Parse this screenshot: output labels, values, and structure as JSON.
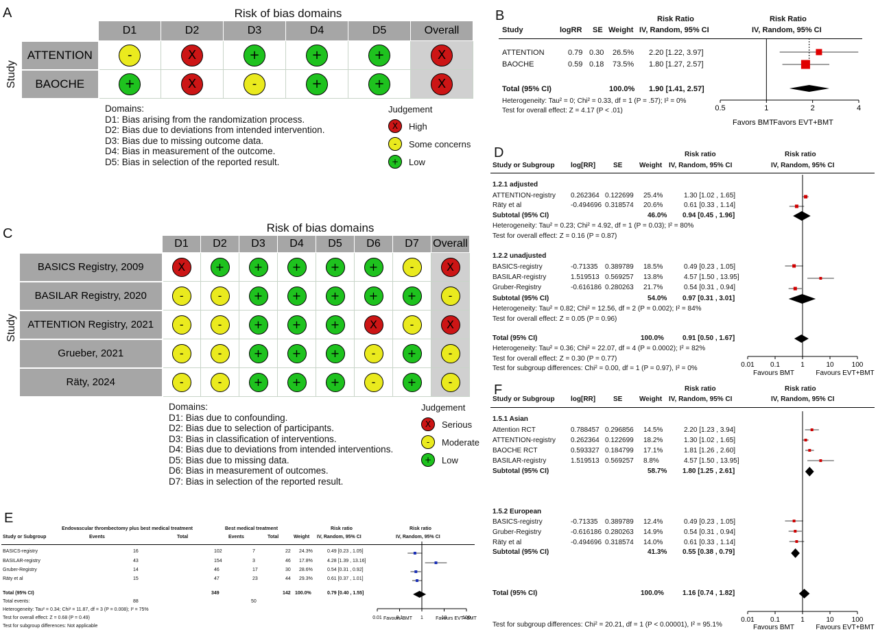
{
  "panels": {
    "a": "A",
    "b": "B",
    "c": "C",
    "d": "D",
    "e": "E",
    "f": "F"
  },
  "panelA": {
    "title": "Risk of bias domains",
    "ylabel": "Study",
    "domains": [
      "D1",
      "D2",
      "D3",
      "D4",
      "D5",
      "Overall"
    ],
    "studies": [
      {
        "name": "ATTENTION",
        "cells": [
          "some",
          "high",
          "low",
          "low",
          "low",
          "high"
        ]
      },
      {
        "name": "BAOCHE",
        "cells": [
          "low",
          "high",
          "some",
          "low",
          "low",
          "high"
        ]
      }
    ],
    "domains_heading": "Domains:",
    "domain_defs": [
      "D1: Bias arising from the randomization process.",
      "D2: Bias due to deviations from intended intervention.",
      "D3: Bias due to missing outcome data.",
      "D4: Bias in measurement of the outcome.",
      "D5: Bias in selection of the reported result."
    ],
    "judgement_heading": "Judgement",
    "legend": [
      {
        "sym": "X",
        "label": "High",
        "cls": "r"
      },
      {
        "sym": "-",
        "label": "Some concerns",
        "cls": "y"
      },
      {
        "sym": "+",
        "label": "Low",
        "cls": "g"
      }
    ]
  },
  "panelC": {
    "title": "Risk of bias domains",
    "ylabel": "Study",
    "domains": [
      "D1",
      "D2",
      "D3",
      "D4",
      "D5",
      "D6",
      "D7",
      "Overall"
    ],
    "studies": [
      {
        "name": "BASICS Registry, 2009",
        "cells": [
          "r",
          "g",
          "g",
          "g",
          "g",
          "g",
          "y",
          "r"
        ]
      },
      {
        "name": "BASILAR Registry, 2020",
        "cells": [
          "y",
          "y",
          "g",
          "g",
          "g",
          "g",
          "g",
          "y"
        ]
      },
      {
        "name": "ATTENTION Registry, 2021",
        "cells": [
          "y",
          "y",
          "g",
          "g",
          "g",
          "r",
          "y",
          "r"
        ]
      },
      {
        "name": "Grueber, 2021",
        "cells": [
          "y",
          "y",
          "g",
          "g",
          "g",
          "y",
          "g",
          "y"
        ]
      },
      {
        "name": "Räty, 2024",
        "cells": [
          "y",
          "y",
          "g",
          "g",
          "g",
          "y",
          "g",
          "y"
        ]
      }
    ],
    "domains_heading": "Domains:",
    "domain_defs": [
      "D1: Bias due to confounding.",
      "D2: Bias due to selection of participants.",
      "D3: Bias in classification of interventions.",
      "D4: Bias due to deviations from intended interventions.",
      "D5: Bias due to missing data.",
      "D6: Bias in measurement of outcomes.",
      "D7: Bias in selection of the reported result."
    ],
    "judgement_heading": "Judgement",
    "legend": [
      {
        "sym": "X",
        "label": "Serious",
        "cls": "r"
      },
      {
        "sym": "-",
        "label": "Moderate",
        "cls": "y"
      },
      {
        "sym": "+",
        "label": "Low",
        "cls": "g"
      }
    ]
  },
  "panelB": {
    "head_rr": "Risk Ratio",
    "head_rr2": "Risk Ratio",
    "col_study": "Study",
    "col_logrr": "logRR",
    "col_se": "SE",
    "col_weight": "Weight",
    "col_ci": "IV, Random, 95% CI",
    "col_ci2": "IV, Random, 95% CI",
    "rows": [
      {
        "study": "ATTENTION",
        "logrr": "0.79",
        "se": "0.30",
        "weight": "26.5%",
        "ci": "2.20 [1.22, 3.97]"
      },
      {
        "study": "BAOCHE",
        "logrr": "0.59",
        "se": "0.18",
        "weight": "73.5%",
        "ci": "1.80 [1.27, 2.57]"
      }
    ],
    "total_label": "Total (95% CI)",
    "total_weight": "100.0%",
    "total_ci": "1.90 [1.41, 2.57]",
    "heterogeneity": "Heterogeneity: Tau² = 0; Chi² = 0.33, df = 1 (P = .57); I² = 0%",
    "overall": "Test for overall effect: Z = 4.17 (P < .01)",
    "ticks": [
      "0.5",
      "1",
      "2",
      "4"
    ],
    "favors_left": "Favors BMT",
    "favors_right": "Favors EVT+BMT"
  },
  "panelD": {
    "head_rr": "Risk ratio",
    "head_rr2": "Risk ratio",
    "col_study": "Study or Subgroup",
    "col_logrr": "log[RR]",
    "col_se": "SE",
    "col_weight": "Weight",
    "col_ci": "IV, Random, 95% CI",
    "col_ci2": "IV, Random, 95% CI",
    "sub1": "1.2.1 adjusted",
    "rows1": [
      {
        "study": "ATTENTION-registry",
        "logrr": "0.262364",
        "se": "0.122699",
        "weight": "25.4%",
        "ci": "1.30 [1.02 , 1.65]"
      },
      {
        "study": "Räty et al",
        "logrr": "-0.494696",
        "se": "0.318574",
        "weight": "20.6%",
        "ci": "0.61 [0.33 , 1.14]"
      }
    ],
    "subtotal1": {
      "label": "Subtotal (95% CI)",
      "weight": "46.0%",
      "ci": "0.94 [0.45 , 1.96]"
    },
    "het1": "Heterogeneity: Tau² = 0.23; Chi² = 4.92, df = 1 (P = 0.03); I² = 80%",
    "ov1": "Test for overall effect: Z = 0.16 (P = 0.87)",
    "sub2": "1.2.2 unadjusted",
    "rows2": [
      {
        "study": "BASICS-registry",
        "logrr": "-0.71335",
        "se": "0.389789",
        "weight": "18.5%",
        "ci": "0.49 [0.23 , 1.05]"
      },
      {
        "study": "BASILAR-registry",
        "logrr": "1.519513",
        "se": "0.569257",
        "weight": "13.8%",
        "ci": "4.57 [1.50 , 13.95]"
      },
      {
        "study": "Gruber-Registry",
        "logrr": "-0.616186",
        "se": "0.280263",
        "weight": "21.7%",
        "ci": "0.54 [0.31 , 0.94]"
      }
    ],
    "subtotal2": {
      "label": "Subtotal (95% CI)",
      "weight": "54.0%",
      "ci": "0.97 [0.31 , 3.01]"
    },
    "het2": "Heterogeneity: Tau² = 0.82; Chi² = 12.56, df = 2 (P = 0.002); I² = 84%",
    "ov2": "Test for overall effect: Z = 0.05 (P = 0.96)",
    "total": {
      "label": "Total (95% CI)",
      "weight": "100.0%",
      "ci": "0.91 [0.50 , 1.67]"
    },
    "het_total": "Heterogeneity: Tau² = 0.36; Chi² = 22.07, df = 4 (P = 0.0002); I² = 82%",
    "ov_total": "Test for overall effect: Z = 0.30 (P = 0.77)",
    "subgroup": "Test for subgroup differences: Chi² = 0.00, df = 1 (P = 0.97), I² = 0%",
    "ticks": [
      "0.01",
      "0.1",
      "1",
      "10",
      "100"
    ],
    "favors_left": "Favours BMT",
    "favors_right": "Favours EVT+BMT"
  },
  "panelE": {
    "head_group1": "Endovascular thrombectomy plus best medical treatment",
    "head_group2": "Best medical treatment",
    "head_rr": "Risk ratio",
    "head_rr2": "Risk ratio",
    "col_study": "Study or Subgroup",
    "col_events": "Events",
    "col_total": "Total",
    "col_events2": "Events",
    "col_total2": "Total",
    "col_weight": "Weight",
    "col_ci": "IV, Random, 95% CI",
    "col_ci2": "IV, Random, 95% CI",
    "rows": [
      {
        "study": "BASICS-registry",
        "e1": "16",
        "t1": "102",
        "e2": "7",
        "t2": "22",
        "w": "24.3%",
        "ci": "0.49 [0.23 , 1.05]"
      },
      {
        "study": "BASILAR-registry",
        "e1": "43",
        "t1": "154",
        "e2": "3",
        "t2": "46",
        "w": "17.8%",
        "ci": "4.28 [1.39 , 13.16]"
      },
      {
        "study": "Gruber-Registry",
        "e1": "14",
        "t1": "46",
        "e2": "17",
        "t2": "30",
        "w": "28.6%",
        "ci": "0.54 [0.31 , 0.92]"
      },
      {
        "study": "Räty et al",
        "e1": "15",
        "t1": "47",
        "e2": "23",
        "t2": "44",
        "w": "29.3%",
        "ci": "0.61 [0.37 , 1.01]"
      }
    ],
    "total_label": "Total (95% CI)",
    "total_t1": "349",
    "total_t2": "142",
    "total_w": "100.0%",
    "total_ci": "0.79 [0.40 , 1.55]",
    "total_events_label": "Total events:",
    "total_e1": "88",
    "total_e2": "50",
    "het": "Heterogeneity: Tau² = 0.34; Chi² = 11.87, df = 3 (P = 0.008); I² = 75%",
    "ov": "Test for overall effect: Z = 0.68 (P = 0.49)",
    "subgroup": "Test for subgroup differences: Not applicable",
    "ticks": [
      "0.01",
      "0.1",
      "1",
      "10",
      "100"
    ],
    "favors_left": "Favours BMT",
    "favors_right": "Favours EVT+BMT"
  },
  "panelF": {
    "head_rr": "Risk ratio",
    "head_rr2": "Risk ratio",
    "col_study": "Study or Subgroup",
    "col_logrr": "log[RR]",
    "col_se": "SE",
    "col_weight": "Weight",
    "col_ci": "IV, Random, 95% CI",
    "col_ci2": "IV, Random, 95% CI",
    "sub1": "1.5.1 Asian",
    "rows1": [
      {
        "study": "Attention RCT",
        "logrr": "0.788457",
        "se": "0.296856",
        "weight": "14.5%",
        "ci": "2.20 [1.23 , 3.94]"
      },
      {
        "study": "ATTENTION-registry",
        "logrr": "0.262364",
        "se": "0.122699",
        "weight": "18.2%",
        "ci": "1.30 [1.02 , 1.65]"
      },
      {
        "study": "BAOCHE RCT",
        "logrr": "0.593327",
        "se": "0.184799",
        "weight": "17.1%",
        "ci": "1.81 [1.26 , 2.60]"
      },
      {
        "study": "BASILAR-registry",
        "logrr": "1.519513",
        "se": "0.569257",
        "weight": "8.8%",
        "ci": "4.57 [1.50 , 13.95]"
      }
    ],
    "subtotal1": {
      "label": "Subtotal (95% CI)",
      "weight": "58.7%",
      "ci": "1.80 [1.25 , 2.61]"
    },
    "sub2": "1.5.2 European",
    "rows2": [
      {
        "study": "BASICS-registry",
        "logrr": "-0.71335",
        "se": "0.389789",
        "weight": "12.4%",
        "ci": "0.49 [0.23 , 1.05]"
      },
      {
        "study": "Gruber-Registry",
        "logrr": "-0.616186",
        "se": "0.280263",
        "weight": "14.9%",
        "ci": "0.54 [0.31 , 0.94]"
      },
      {
        "study": "Räty et al",
        "logrr": "-0.494696",
        "se": "0.318574",
        "weight": "14.0%",
        "ci": "0.61 [0.33 , 1.14]"
      }
    ],
    "subtotal2": {
      "label": "Subtotal (95% CI)",
      "weight": "41.3%",
      "ci": "0.55 [0.38 , 0.79]"
    },
    "total": {
      "label": "Total (95% CI)",
      "weight": "100.0%",
      "ci": "1.16 [0.74 , 1.82]"
    },
    "subgroup": "Test for subgroup differences: Chi² = 20.21, df = 1 (P < 0.00001), I² = 95.1%",
    "ticks": [
      "0.01",
      "0.1",
      "1",
      "10",
      "100"
    ],
    "favors_left": "Favours BMT",
    "favors_right": "Favours EVT+BMT"
  },
  "chart_data": [
    {
      "panel": "B",
      "type": "scatter",
      "xscale": "log",
      "xlim": [
        0.5,
        4
      ],
      "series": [
        {
          "values": [
            {
              "label": "ATTENTION",
              "rr": 2.2,
              "lo": 1.22,
              "hi": 3.97,
              "w": 26.5
            },
            {
              "label": "BAOCHE",
              "rr": 1.8,
              "lo": 1.27,
              "hi": 2.57,
              "w": 73.5
            }
          ]
        }
      ],
      "pooled": {
        "rr": 1.9,
        "lo": 1.41,
        "hi": 2.57
      }
    },
    {
      "panel": "D",
      "type": "scatter",
      "xscale": "log",
      "xlim": [
        0.01,
        100
      ],
      "series": [
        {
          "values": [
            {
              "label": "ATTENTION-registry",
              "rr": 1.3,
              "lo": 1.02,
              "hi": 1.65
            },
            {
              "label": "Räty et al",
              "rr": 0.61,
              "lo": 0.33,
              "hi": 1.14
            },
            {
              "label": "BASICS-registry",
              "rr": 0.49,
              "lo": 0.23,
              "hi": 1.05
            },
            {
              "label": "BASILAR-registry",
              "rr": 4.57,
              "lo": 1.5,
              "hi": 13.95
            },
            {
              "label": "Gruber-Registry",
              "rr": 0.54,
              "lo": 0.31,
              "hi": 0.94
            }
          ]
        }
      ],
      "pooled": [
        {
          "rr": 0.94,
          "lo": 0.45,
          "hi": 1.96
        },
        {
          "rr": 0.97,
          "lo": 0.31,
          "hi": 3.01
        },
        {
          "rr": 0.91,
          "lo": 0.5,
          "hi": 1.67
        }
      ]
    },
    {
      "panel": "E",
      "type": "scatter",
      "xscale": "log",
      "xlim": [
        0.01,
        100
      ],
      "series": [
        {
          "values": [
            {
              "label": "BASICS-registry",
              "rr": 0.49,
              "lo": 0.23,
              "hi": 1.05
            },
            {
              "label": "BASILAR-registry",
              "rr": 4.28,
              "lo": 1.39,
              "hi": 13.16
            },
            {
              "label": "Gruber-Registry",
              "rr": 0.54,
              "lo": 0.31,
              "hi": 0.92
            },
            {
              "label": "Räty et al",
              "rr": 0.61,
              "lo": 0.37,
              "hi": 1.01
            }
          ]
        }
      ],
      "pooled": {
        "rr": 0.79,
        "lo": 0.4,
        "hi": 1.55
      }
    },
    {
      "panel": "F",
      "type": "scatter",
      "xscale": "log",
      "xlim": [
        0.01,
        100
      ],
      "series": [
        {
          "values": [
            {
              "label": "Attention RCT",
              "rr": 2.2,
              "lo": 1.23,
              "hi": 3.94
            },
            {
              "label": "ATTENTION-registry",
              "rr": 1.3,
              "lo": 1.02,
              "hi": 1.65
            },
            {
              "label": "BAOCHE RCT",
              "rr": 1.81,
              "lo": 1.26,
              "hi": 2.6
            },
            {
              "label": "BASILAR-registry",
              "rr": 4.57,
              "lo": 1.5,
              "hi": 13.95
            },
            {
              "label": "BASICS-registry",
              "rr": 0.49,
              "lo": 0.23,
              "hi": 1.05
            },
            {
              "label": "Gruber-Registry",
              "rr": 0.54,
              "lo": 0.31,
              "hi": 0.94
            },
            {
              "label": "Räty et al",
              "rr": 0.61,
              "lo": 0.33,
              "hi": 1.14
            }
          ]
        }
      ],
      "pooled": [
        {
          "rr": 1.8,
          "lo": 1.25,
          "hi": 2.61
        },
        {
          "rr": 0.55,
          "lo": 0.38,
          "hi": 0.79
        },
        {
          "rr": 1.16,
          "lo": 0.74,
          "hi": 1.82
        }
      ]
    }
  ]
}
